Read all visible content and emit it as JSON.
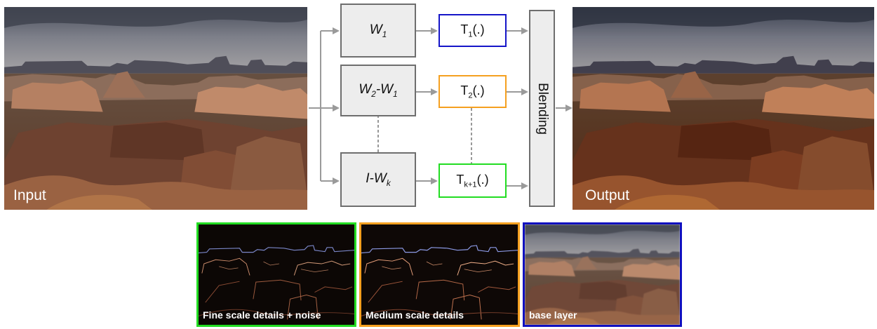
{
  "pipeline": {
    "input_label": "Input",
    "output_label": "Output",
    "weights": [
      {
        "main": "W",
        "sub": "1",
        "tail": "",
        "tail_sub": ""
      },
      {
        "main": "W",
        "sub": "2",
        "tail": "-W",
        "tail_sub": "1"
      },
      {
        "main": "I-W",
        "sub": "k",
        "tail": "",
        "tail_sub": ""
      }
    ],
    "transforms": [
      {
        "main": "T",
        "sub": "1",
        "tail": "(.)"
      },
      {
        "main": "T",
        "sub": "2",
        "tail": "(.)"
      },
      {
        "main": "T",
        "sub": "k+1",
        "tail": "(.)"
      }
    ],
    "blending_label": "Blending"
  },
  "layers": [
    {
      "label": "Fine scale details + noise",
      "border_color": "#22dd22"
    },
    {
      "label": "Medium scale details",
      "border_color": "#f5a020"
    },
    {
      "label": "base layer",
      "border_color": "#1010c0"
    }
  ],
  "colors": {
    "transform_1": "#1515c8",
    "transform_2": "#f5a020",
    "transform_3": "#22dd22",
    "box_border": "#6e6e6e",
    "arrow": "#9a9a9a"
  }
}
